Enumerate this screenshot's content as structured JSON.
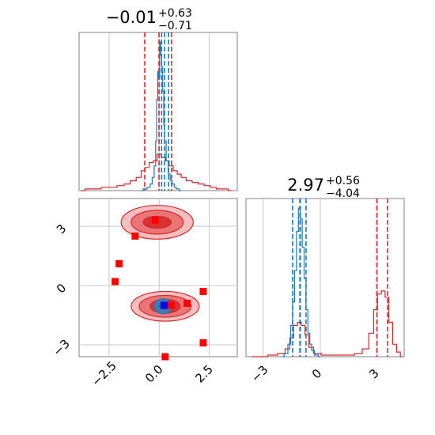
{
  "colors": {
    "red": "#d62728",
    "blue": "#1f77b4",
    "red_fill_light": "#f5b3b4",
    "red_fill_mid": "#e8686a",
    "red_fill_dark": "#d62728",
    "blue_fill": "#3c7fb6",
    "grid": "#c8c8c8",
    "frame": "#808080",
    "marker_red": "#ff0000",
    "marker_blue": "#0000ff"
  },
  "titles": {
    "x0": {
      "center": "−0.01",
      "sup": "+0.63",
      "sub": "−0.71"
    },
    "x1": {
      "center": "2.97",
      "sup": "+0.56",
      "sub": "−4.04"
    }
  },
  "chart_data": [
    {
      "type": "line",
      "panel": "top-left marginal (parameter 0)",
      "xlim": [
        -4.0,
        3.9
      ],
      "xticks": [
        -2.5,
        0.0,
        2.5
      ],
      "grid": true,
      "series": [
        {
          "color": "red",
          "x": [
            -3.9,
            -3.5,
            -3.1,
            -2.7,
            -2.3,
            -1.9,
            -1.6,
            -1.3,
            -1.0,
            -0.8,
            -0.6,
            -0.4,
            -0.2,
            0.0,
            0.2,
            0.4,
            0.6,
            0.8,
            1.0,
            1.2,
            1.5,
            1.8,
            2.1,
            2.4,
            2.7,
            3.0,
            3.3,
            3.6
          ],
          "values": [
            0.0,
            0.01,
            0.01,
            0.02,
            0.02,
            0.03,
            0.04,
            0.06,
            0.08,
            0.12,
            0.14,
            0.17,
            0.18,
            0.22,
            0.2,
            0.18,
            0.15,
            0.12,
            0.1,
            0.08,
            0.06,
            0.05,
            0.04,
            0.03,
            0.02,
            0.01,
            0.01,
            0.0
          ],
          "quantiles": [
            -0.72,
            -0.01,
            0.62
          ]
        },
        {
          "color": "blue",
          "x": [
            -0.9,
            -0.7,
            -0.5,
            -0.4,
            -0.3,
            -0.2,
            -0.15,
            -0.1,
            -0.05,
            0.0,
            0.05,
            0.1,
            0.15,
            0.2,
            0.25,
            0.3,
            0.4,
            0.5,
            0.6,
            0.7,
            0.8,
            0.9,
            1.1
          ],
          "values": [
            0.0,
            0.01,
            0.02,
            0.04,
            0.08,
            0.15,
            0.3,
            0.55,
            0.72,
            0.68,
            0.9,
            0.82,
            0.75,
            0.6,
            0.4,
            0.3,
            0.18,
            0.1,
            0.06,
            0.04,
            0.02,
            0.01,
            0.0
          ],
          "quantiles": [
            0.12,
            0.27,
            0.47
          ]
        }
      ]
    },
    {
      "type": "scatter",
      "panel": "bottom-left 2D density (parameter 0 vs parameter 1)",
      "xlim": [
        -4.0,
        3.9
      ],
      "ylim": [
        -3.6,
        4.4
      ],
      "xticks": [
        -2.5,
        0.0,
        2.5
      ],
      "yticks": [
        -3,
        0,
        3
      ],
      "grid": true,
      "contours": [
        {
          "color": "red",
          "center": [
            -0.1,
            3.2
          ],
          "levels": [
            [
              1.8,
              0.85
            ],
            [
              1.3,
              0.6
            ],
            [
              0.7,
              0.3
            ]
          ]
        },
        {
          "color": "red",
          "center": [
            0.3,
            -1.05
          ],
          "levels": [
            [
              1.7,
              0.75
            ],
            [
              1.3,
              0.55
            ],
            [
              0.75,
              0.35
            ]
          ]
        },
        {
          "color": "blue",
          "center": [
            0.2,
            -1.05
          ],
          "levels": [
            [
              0.45,
              0.38
            ],
            [
              0.22,
              0.18
            ]
          ]
        }
      ],
      "red_markers": {
        "x": [
          -0.2,
          -1.2,
          -2.0,
          -2.2,
          1.4,
          2.2,
          2.2,
          0.3,
          0.6
        ],
        "y": [
          3.3,
          2.5,
          1.1,
          0.2,
          -0.9,
          -0.3,
          -2.9,
          -3.6,
          -1.0
        ]
      },
      "blue_markers": {
        "x": [
          0.25
        ],
        "y": [
          -1.0
        ]
      }
    },
    {
      "type": "line",
      "panel": "bottom-right marginal (parameter 1)",
      "xlim": [
        -3.9,
        4.4
      ],
      "xticks": [
        -3,
        0,
        3
      ],
      "grid": true,
      "series": [
        {
          "color": "red",
          "x": [
            -3.6,
            -3.0,
            -2.5,
            -2.0,
            -1.7,
            -1.5,
            -1.3,
            -1.1,
            -0.9,
            -0.7,
            -0.5,
            -0.2,
            0.3,
            1.0,
            1.6,
            2.0,
            2.4,
            2.7,
            2.9,
            3.1,
            3.3,
            3.5,
            3.7,
            3.9,
            4.1,
            4.3
          ],
          "values": [
            0.0,
            0.0,
            0.01,
            0.02,
            0.05,
            0.12,
            0.2,
            0.22,
            0.2,
            0.14,
            0.06,
            0.02,
            0.01,
            0.01,
            0.01,
            0.02,
            0.05,
            0.15,
            0.3,
            0.4,
            0.42,
            0.38,
            0.22,
            0.08,
            0.03,
            0.0
          ],
          "quantiles": [
            -1.07,
            2.97,
            3.53
          ]
        },
        {
          "color": "blue",
          "x": [
            -2.0,
            -1.8,
            -1.6,
            -1.5,
            -1.4,
            -1.3,
            -1.2,
            -1.1,
            -1.0,
            -0.9,
            -0.8,
            -0.7,
            -0.6,
            -0.5,
            -0.4,
            -0.2,
            0.0
          ],
          "values": [
            0.0,
            0.02,
            0.08,
            0.2,
            0.35,
            0.55,
            0.8,
            0.95,
            0.88,
            0.7,
            0.5,
            0.3,
            0.15,
            0.08,
            0.04,
            0.01,
            0.0
          ],
          "quantiles": [
            -1.45,
            -1.05,
            -0.75
          ]
        }
      ]
    }
  ]
}
